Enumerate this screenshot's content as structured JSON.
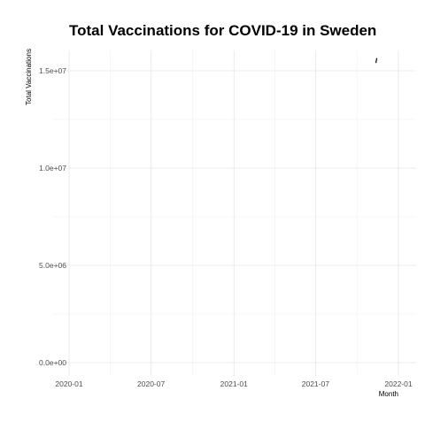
{
  "chart_data": {
    "type": "line",
    "title": "Total Vaccinations for COVID-19 in Sweden",
    "xlabel": "Month",
    "ylabel": "Total Vaccinations",
    "x_axis_type": "date",
    "xlim": [
      "2020-01-01",
      "2022-01-01"
    ],
    "ylim": [
      0,
      16000000
    ],
    "x_ticks": [
      "2020-01-01",
      "2020-07-01",
      "2021-01-01",
      "2021-07-01",
      "2022-01-01"
    ],
    "x_tick_labels": [
      "2020-01",
      "2020-07",
      "2021-01",
      "2021-07",
      "2022-01"
    ],
    "y_ticks": [
      0,
      5000000,
      10000000,
      15000000
    ],
    "y_tick_labels": [
      "0.0e+00",
      "5.0e+06",
      "1.0e+07",
      "1.5e+07"
    ],
    "grid": true,
    "series": [
      {
        "color": "#000000",
        "points": [
          {
            "x": "2021-11-12",
            "y": 15400000
          },
          {
            "x": "2021-11-14",
            "y": 15650000
          }
        ]
      }
    ]
  }
}
